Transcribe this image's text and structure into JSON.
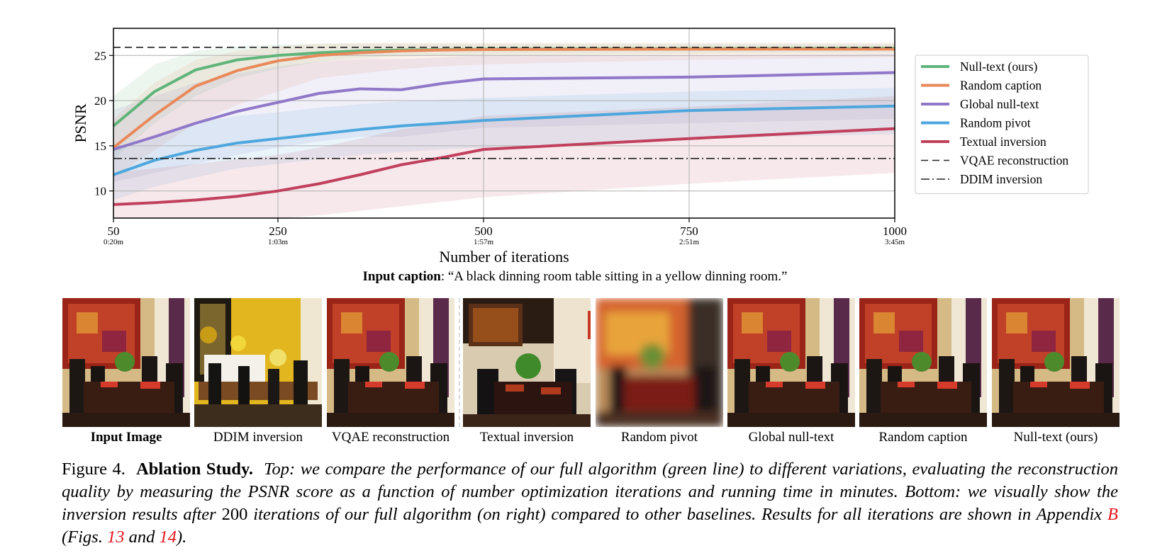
{
  "chart_data": {
    "type": "line",
    "ylabel": "PSNR",
    "xlabel": "Number of iterations",
    "xlim": [
      50,
      1000
    ],
    "ylim": [
      7,
      28
    ],
    "grid": true,
    "legend_position": "right",
    "x_ticks": [
      50,
      250,
      500,
      750,
      1000
    ],
    "x_tick_labels": [
      "50",
      "250",
      "500",
      "750",
      "1000"
    ],
    "x_tick_sublabels": [
      "0:20m",
      "1:03m",
      "1:57m",
      "2:51m",
      "3:45m"
    ],
    "y_ticks": [
      10,
      15,
      20,
      25
    ],
    "y_tick_labels": [
      "10",
      "15",
      "20",
      "25"
    ],
    "series": [
      {
        "name": "Null-text (ours)",
        "color": "#5fb47a",
        "style": "solid",
        "x": [
          50,
          100,
          150,
          200,
          250,
          300,
          350,
          400,
          450,
          500,
          750,
          1000
        ],
        "y": [
          17.2,
          21.0,
          23.4,
          24.5,
          25.0,
          25.3,
          25.5,
          25.6,
          25.65,
          25.7,
          25.75,
          25.8
        ],
        "band_low": [
          13.5,
          17.5,
          20.5,
          22.5,
          23.5,
          24.3,
          24.7,
          24.9,
          25.0,
          25.1,
          25.2,
          25.3
        ],
        "band_high": [
          20.5,
          24.0,
          25.5,
          26.0,
          26.2,
          26.3,
          26.3,
          26.3,
          26.3,
          26.3,
          26.3,
          26.3
        ]
      },
      {
        "name": "Random caption",
        "color": "#e8895a",
        "style": "solid",
        "x": [
          50,
          100,
          150,
          200,
          250,
          300,
          350,
          400,
          450,
          500,
          750,
          1000
        ],
        "y": [
          14.8,
          18.4,
          21.6,
          23.3,
          24.4,
          25.0,
          25.3,
          25.5,
          25.6,
          25.65,
          25.7,
          25.7
        ],
        "band_low": [
          11.5,
          14.5,
          17.5,
          19.5,
          21.0,
          22.5,
          23.0,
          23.5,
          23.8,
          24.0,
          24.5,
          24.8
        ],
        "band_high": [
          18.0,
          22.0,
          24.5,
          25.5,
          26.0,
          26.3,
          26.4,
          26.4,
          26.4,
          26.4,
          26.4,
          26.4
        ]
      },
      {
        "name": "Global null-text",
        "color": "#8f78c8",
        "style": "solid",
        "x": [
          50,
          100,
          150,
          200,
          250,
          300,
          350,
          400,
          450,
          500,
          750,
          1000
        ],
        "y": [
          14.6,
          16.0,
          17.5,
          18.8,
          19.8,
          20.8,
          21.3,
          21.2,
          21.9,
          22.4,
          22.6,
          23.1
        ],
        "band_low": [
          11.0,
          12.0,
          13.0,
          14.0,
          14.8,
          15.5,
          16.0,
          16.0,
          16.5,
          17.0,
          17.5,
          18.0
        ],
        "band_high": [
          19.0,
          20.5,
          22.0,
          23.0,
          23.8,
          24.3,
          24.6,
          24.6,
          24.8,
          25.0,
          25.0,
          25.2
        ]
      },
      {
        "name": "Random pivot",
        "color": "#4da7dd",
        "style": "solid",
        "x": [
          50,
          100,
          150,
          200,
          250,
          300,
          350,
          400,
          450,
          500,
          750,
          1000
        ],
        "y": [
          11.8,
          13.4,
          14.5,
          15.3,
          15.8,
          16.3,
          16.8,
          17.2,
          17.5,
          17.8,
          18.9,
          19.4
        ],
        "band_low": [
          9.0,
          10.5,
          11.5,
          12.5,
          13.0,
          13.5,
          14.0,
          14.3,
          14.6,
          14.8,
          15.8,
          16.3
        ],
        "band_high": [
          14.5,
          16.0,
          17.5,
          18.3,
          18.7,
          19.2,
          19.6,
          19.9,
          20.1,
          20.3,
          21.0,
          21.4
        ]
      },
      {
        "name": "Textual inversion",
        "color": "#c0405e",
        "style": "solid",
        "x": [
          50,
          100,
          150,
          200,
          250,
          300,
          350,
          400,
          450,
          500,
          750,
          1000
        ],
        "y": [
          8.5,
          8.7,
          9.0,
          9.4,
          10.0,
          10.8,
          11.8,
          12.9,
          13.7,
          14.6,
          15.8,
          16.9
        ],
        "band_low": [
          7.0,
          7.0,
          7.0,
          7.0,
          7.0,
          7.3,
          7.8,
          8.3,
          8.8,
          9.3,
          10.8,
          12.0
        ],
        "band_high": [
          12.0,
          12.5,
          13.0,
          13.5,
          14.0,
          14.8,
          15.8,
          16.8,
          17.5,
          18.3,
          19.3,
          20.5
        ]
      },
      {
        "name": "VQAE reconstruction",
        "color": "#222222",
        "style": "dashed",
        "x": [
          50,
          1000
        ],
        "y": [
          25.9,
          25.9
        ]
      },
      {
        "name": "DDIM inversion",
        "color": "#222222",
        "style": "dashdot",
        "x": [
          50,
          1000
        ],
        "y": [
          13.6,
          13.6
        ]
      }
    ]
  },
  "input_caption": {
    "label": "Input caption",
    "text": ": “A black dinning room table sitting in a yellow dinning room.”"
  },
  "thumbnails": [
    {
      "label": "Input Image",
      "bold": true,
      "variant": "input"
    },
    {
      "label": "DDIM inversion",
      "bold": false,
      "variant": "yellow"
    },
    {
      "label": "VQAE reconstruction",
      "bold": false,
      "variant": "input"
    },
    {
      "label": "Textual inversion",
      "bold": false,
      "variant": "dark"
    },
    {
      "label": "Random pivot",
      "bold": false,
      "variant": "blur"
    },
    {
      "label": "Global null-text",
      "bold": false,
      "variant": "input"
    },
    {
      "label": "Random caption",
      "bold": false,
      "variant": "input"
    },
    {
      "label": "Null-text (ours)",
      "bold": false,
      "variant": "input"
    }
  ],
  "figure_caption": {
    "number": "Figure 4.",
    "title": "Ablation Study.",
    "text1": "Top: we compare the performance of our full algorithm (green line) to different variations, evaluating the reconstruction quality by measuring the PSNR score as a function of number optimization iterations and running time in minutes. Bottom: we visually show the inversion results after",
    "num": "200",
    "text2": "iterations of our full algorithm (on right) compared to other baselines. Results for all iterations are shown in Appendix",
    "ref_appendix": "B",
    "text3": "(Figs.",
    "ref_fig1": "13",
    "and_word": "and",
    "ref_fig2": "14",
    "text4": ")."
  }
}
